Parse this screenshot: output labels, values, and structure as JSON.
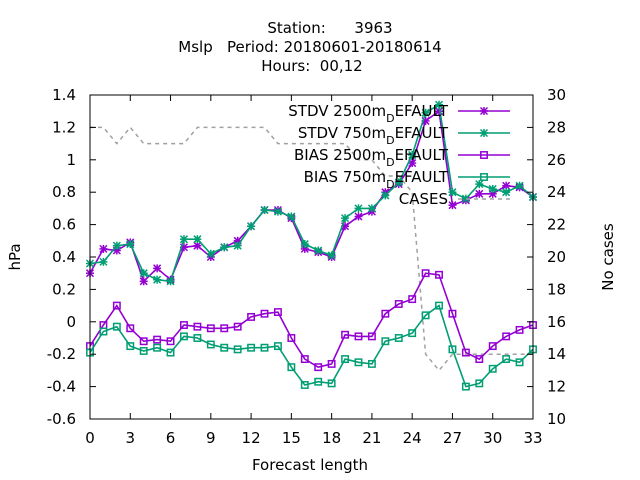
{
  "chart_data": {
    "type": "line",
    "title_lines": [
      "Station:      3963",
      "Mslp   Period: 20180601-20180614",
      "Hours:  00,12"
    ],
    "xlabel": "Forecast length",
    "ylabel": "hPa",
    "y2label": "No cases",
    "xlim": [
      0,
      33
    ],
    "ylim": [
      -0.6,
      1.4
    ],
    "y2lim": [
      10,
      30
    ],
    "xticks": [
      "0",
      "3",
      "6",
      "9",
      "12",
      "15",
      "18",
      "21",
      "24",
      "27",
      "30",
      "33"
    ],
    "yticks": [
      "-0.6",
      "-0.4",
      "-0.2",
      "0",
      "0.2",
      "0.4",
      "0.6",
      "0.8",
      "1",
      "1.2",
      "1.4"
    ],
    "y2ticks": [
      "10",
      "12",
      "14",
      "16",
      "18",
      "20",
      "22",
      "24",
      "26",
      "28",
      "30"
    ],
    "grid": false,
    "legend_position": "top-right",
    "x": [
      0,
      1,
      2,
      3,
      4,
      5,
      6,
      7,
      8,
      9,
      10,
      11,
      12,
      13,
      14,
      15,
      16,
      17,
      18,
      19,
      20,
      21,
      22,
      23,
      24,
      25,
      26,
      27,
      28,
      29,
      30,
      31,
      32,
      33
    ],
    "series": [
      {
        "name": "STDV 2500m_DEFAULT",
        "legend_main": "STDV 2500m",
        "legend_sub": "D",
        "legend_tail": "EFAULT",
        "color": "#9400d3",
        "marker": "star",
        "axis": "y",
        "values": [
          0.3,
          0.45,
          0.44,
          0.49,
          0.25,
          0.33,
          0.26,
          0.46,
          0.47,
          0.4,
          0.46,
          0.5,
          0.59,
          0.69,
          0.69,
          0.64,
          0.45,
          0.43,
          0.4,
          0.59,
          0.65,
          0.68,
          0.8,
          0.85,
          0.98,
          1.24,
          1.3,
          0.72,
          0.75,
          0.79,
          0.79,
          0.84,
          0.83,
          0.77
        ]
      },
      {
        "name": "STDV 750m_DEFAULT",
        "legend_main": "STDV 750m",
        "legend_sub": "D",
        "legend_tail": "EFAULT",
        "color": "#009e73",
        "marker": "star",
        "axis": "y",
        "values": [
          0.36,
          0.37,
          0.47,
          0.48,
          0.3,
          0.26,
          0.25,
          0.51,
          0.51,
          0.42,
          0.46,
          0.47,
          0.59,
          0.69,
          0.68,
          0.65,
          0.48,
          0.44,
          0.41,
          0.64,
          0.7,
          0.7,
          0.78,
          0.86,
          1.03,
          1.29,
          1.34,
          0.8,
          0.76,
          0.85,
          0.82,
          0.8,
          0.84,
          0.77
        ]
      },
      {
        "name": "BIAS 2500m_DEFAULT",
        "legend_main": "BIAS 2500m",
        "legend_sub": "D",
        "legend_tail": "EFAULT",
        "color": "#9400d3",
        "marker": "square",
        "axis": "y",
        "values": [
          -0.15,
          -0.02,
          0.1,
          -0.04,
          -0.12,
          -0.11,
          -0.12,
          -0.02,
          -0.03,
          -0.04,
          -0.04,
          -0.03,
          0.03,
          0.05,
          0.06,
          -0.1,
          -0.23,
          -0.28,
          -0.26,
          -0.08,
          -0.09,
          -0.09,
          0.05,
          0.11,
          0.14,
          0.3,
          0.29,
          0.05,
          -0.19,
          -0.23,
          -0.15,
          -0.09,
          -0.05,
          -0.02
        ]
      },
      {
        "name": "BIAS 750m_DEFAULT",
        "legend_main": "BIAS 750m",
        "legend_sub": "D",
        "legend_tail": "EFAULT",
        "color": "#009e73",
        "marker": "square",
        "axis": "y",
        "values": [
          -0.19,
          -0.06,
          -0.03,
          -0.15,
          -0.18,
          -0.16,
          -0.19,
          -0.09,
          -0.1,
          -0.14,
          -0.16,
          -0.17,
          -0.16,
          -0.16,
          -0.15,
          -0.28,
          -0.39,
          -0.37,
          -0.38,
          -0.23,
          -0.25,
          -0.26,
          -0.12,
          -0.1,
          -0.07,
          0.04,
          0.1,
          -0.17,
          -0.4,
          -0.38,
          -0.29,
          -0.23,
          -0.25,
          -0.17
        ]
      },
      {
        "name": "CASES",
        "legend_main": "CASES",
        "legend_sub": "",
        "legend_tail": "",
        "color": "#a0a0a0",
        "marker": "none",
        "dashed": true,
        "axis": "y2",
        "values": [
          28,
          28,
          27,
          28,
          27,
          27,
          27,
          27,
          28,
          28,
          28,
          28,
          28,
          28,
          27,
          27,
          27,
          27,
          27,
          27,
          26,
          26,
          25,
          25,
          24,
          14,
          13,
          14,
          14,
          14,
          14,
          14,
          14,
          14
        ]
      }
    ]
  }
}
